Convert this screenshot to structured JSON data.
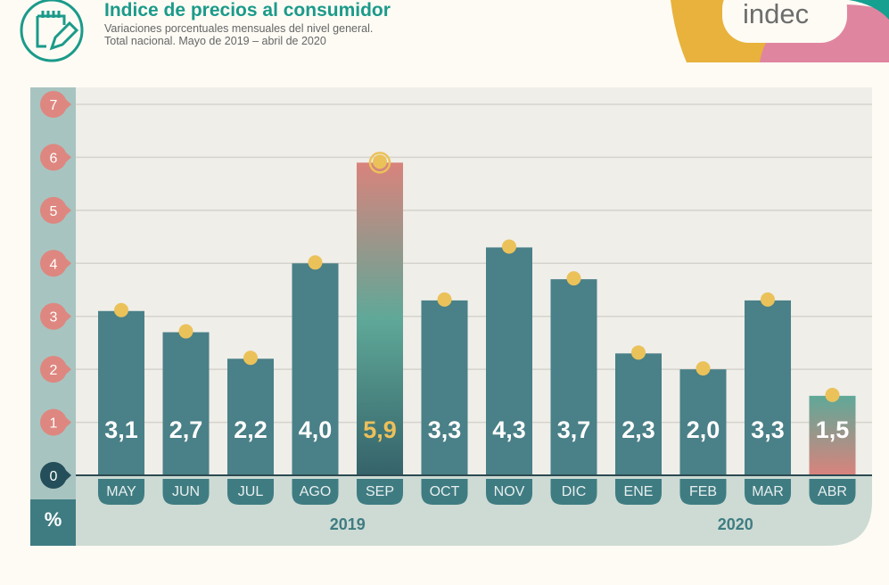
{
  "header": {
    "title": "Indice de precios al consumidor",
    "subtitle_line1": "Variaciones porcentuales mensuales del nivel general.",
    "subtitle_line2": "Total nacional. Mayo de 2019 – abril de 2020",
    "icon": "notepad-pencil-icon"
  },
  "logo": {
    "text": "indec"
  },
  "colors": {
    "bar": "#4a8087",
    "highlight_bar_top": "#d9837c",
    "highlight_bar_mid": "#5fa898",
    "highlight_bar_bottom": "#35636a",
    "dot": "#ebc25a",
    "tick_bubble": "#de8780",
    "zero_bubble": "#244f5a",
    "plot_bg": "#efeee9",
    "axis_bg": "#a8c4c0",
    "bottom_bg": "#cddbd4",
    "teal": "#3f7c82",
    "highlight_label": "#ecc05a"
  },
  "chart_data": {
    "type": "bar",
    "title": "Indice de precios al consumidor",
    "ylabel": "%",
    "ylim": [
      0,
      7
    ],
    "yticks": [
      "0",
      "1",
      "2",
      "3",
      "4",
      "5",
      "6",
      "7"
    ],
    "grid": true,
    "categories": [
      "MAY",
      "JUN",
      "JUL",
      "AGO",
      "SEP",
      "OCT",
      "NOV",
      "DIC",
      "ENE",
      "FEB",
      "MAR",
      "ABR"
    ],
    "values": [
      3.1,
      2.7,
      2.2,
      4.0,
      5.9,
      3.3,
      4.3,
      3.7,
      2.3,
      2.0,
      3.3,
      1.5
    ],
    "labels": [
      "3,1",
      "2,7",
      "2,2",
      "4,0",
      "5,9",
      "3,3",
      "4,3",
      "3,7",
      "2,3",
      "2,0",
      "3,3",
      "1,5"
    ],
    "highlighted": [
      "SEP",
      "ABR"
    ],
    "years": [
      {
        "label": "2019",
        "span": [
          "MAY",
          "DIC"
        ]
      },
      {
        "label": "2020",
        "span": [
          "ENE",
          "ABR"
        ]
      }
    ]
  }
}
